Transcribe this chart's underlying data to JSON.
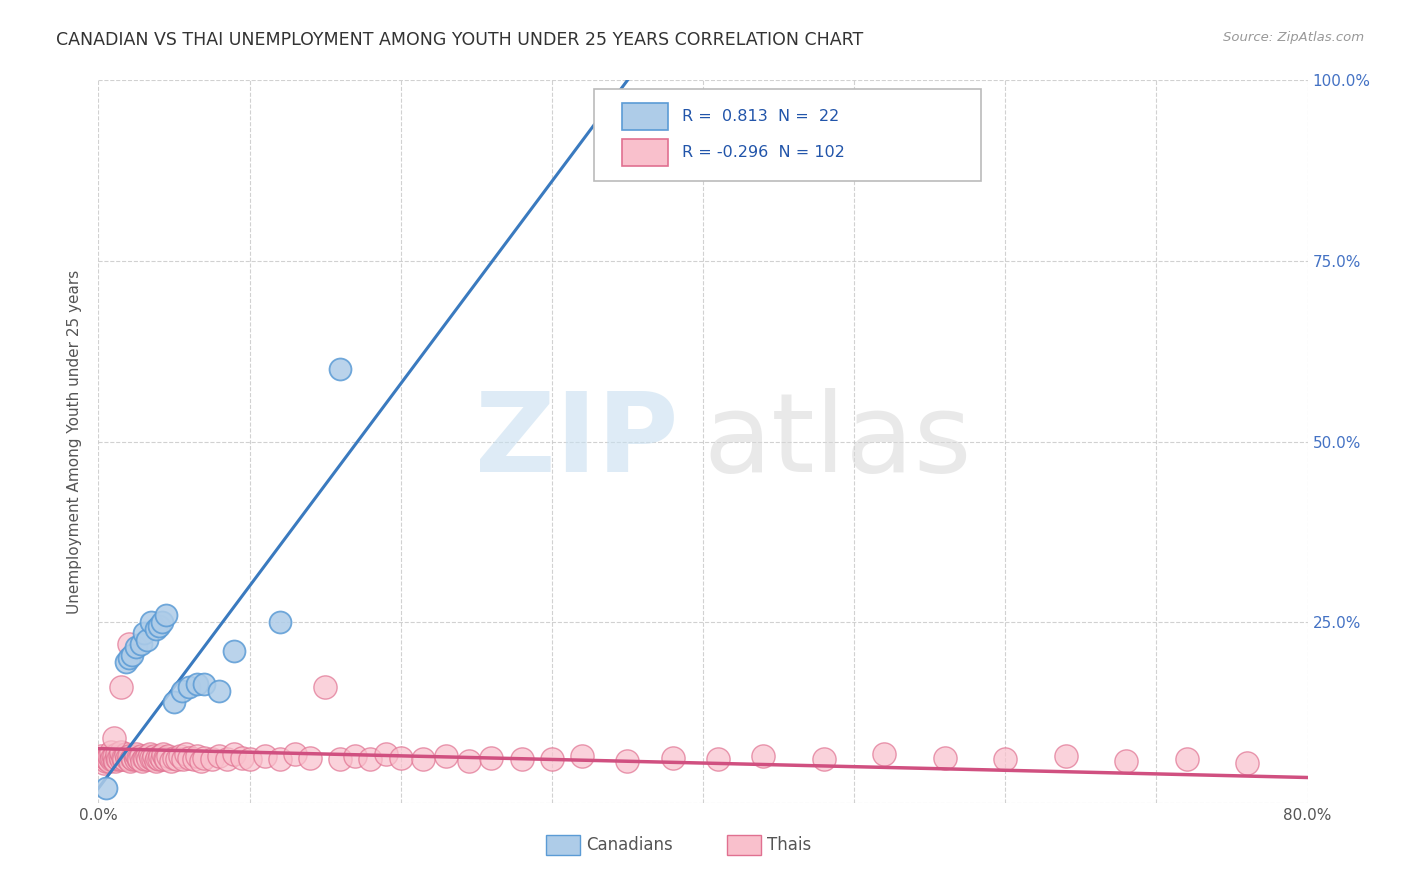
{
  "title": "CANADIAN VS THAI UNEMPLOYMENT AMONG YOUTH UNDER 25 YEARS CORRELATION CHART",
  "source": "Source: ZipAtlas.com",
  "ylabel": "Unemployment Among Youth under 25 years",
  "xlim": [
    0.0,
    0.8
  ],
  "ylim": [
    0.0,
    1.0
  ],
  "xticks": [
    0.0,
    0.1,
    0.2,
    0.3,
    0.4,
    0.5,
    0.6,
    0.7,
    0.8
  ],
  "xticklabels": [
    "0.0%",
    "",
    "",
    "",
    "",
    "",
    "",
    "",
    "80.0%"
  ],
  "yticks": [
    0.0,
    0.25,
    0.5,
    0.75,
    1.0
  ],
  "right_yticklabels": [
    "",
    "25.0%",
    "50.0%",
    "75.0%",
    "100.0%"
  ],
  "canadian_color_fill": "#aecce8",
  "canadian_color_edge": "#5b9bd5",
  "thai_color_fill": "#f9c0cc",
  "thai_color_edge": "#e07090",
  "canadian_line_color": "#3a7abf",
  "thai_line_color": "#d05080",
  "R_canadian": 0.813,
  "N_canadian": 22,
  "R_thai": -0.296,
  "N_thai": 102,
  "canadian_x": [
    0.005,
    0.018,
    0.02,
    0.022,
    0.025,
    0.028,
    0.03,
    0.032,
    0.035,
    0.038,
    0.04,
    0.042,
    0.045,
    0.05,
    0.055,
    0.06,
    0.065,
    0.07,
    0.08,
    0.09,
    0.12,
    0.16
  ],
  "canadian_y": [
    0.02,
    0.195,
    0.2,
    0.205,
    0.215,
    0.22,
    0.235,
    0.225,
    0.25,
    0.24,
    0.245,
    0.25,
    0.26,
    0.14,
    0.155,
    0.16,
    0.165,
    0.165,
    0.155,
    0.21,
    0.25,
    0.6
  ],
  "thai_x": [
    0.002,
    0.003,
    0.004,
    0.005,
    0.005,
    0.006,
    0.007,
    0.007,
    0.008,
    0.008,
    0.009,
    0.01,
    0.01,
    0.011,
    0.012,
    0.012,
    0.013,
    0.014,
    0.015,
    0.015,
    0.016,
    0.017,
    0.018,
    0.019,
    0.02,
    0.02,
    0.021,
    0.022,
    0.023,
    0.024,
    0.025,
    0.025,
    0.026,
    0.027,
    0.028,
    0.029,
    0.03,
    0.031,
    0.032,
    0.033,
    0.034,
    0.035,
    0.036,
    0.037,
    0.038,
    0.039,
    0.04,
    0.041,
    0.042,
    0.043,
    0.044,
    0.045,
    0.046,
    0.048,
    0.05,
    0.052,
    0.054,
    0.056,
    0.058,
    0.06,
    0.063,
    0.065,
    0.068,
    0.07,
    0.075,
    0.08,
    0.085,
    0.09,
    0.095,
    0.1,
    0.11,
    0.12,
    0.13,
    0.14,
    0.15,
    0.16,
    0.17,
    0.18,
    0.19,
    0.2,
    0.215,
    0.23,
    0.245,
    0.26,
    0.28,
    0.3,
    0.32,
    0.35,
    0.38,
    0.41,
    0.44,
    0.48,
    0.52,
    0.56,
    0.6,
    0.64,
    0.68,
    0.72,
    0.76,
    0.01,
    0.015,
    0.02
  ],
  "thai_y": [
    0.065,
    0.06,
    0.055,
    0.058,
    0.062,
    0.06,
    0.058,
    0.065,
    0.06,
    0.07,
    0.062,
    0.06,
    0.065,
    0.058,
    0.062,
    0.068,
    0.06,
    0.065,
    0.06,
    0.07,
    0.062,
    0.06,
    0.068,
    0.062,
    0.06,
    0.065,
    0.058,
    0.062,
    0.06,
    0.065,
    0.06,
    0.068,
    0.062,
    0.06,
    0.065,
    0.058,
    0.062,
    0.06,
    0.065,
    0.06,
    0.068,
    0.062,
    0.06,
    0.065,
    0.058,
    0.062,
    0.06,
    0.065,
    0.06,
    0.068,
    0.062,
    0.06,
    0.065,
    0.058,
    0.062,
    0.06,
    0.065,
    0.06,
    0.068,
    0.062,
    0.06,
    0.065,
    0.058,
    0.062,
    0.06,
    0.065,
    0.06,
    0.068,
    0.062,
    0.06,
    0.065,
    0.06,
    0.068,
    0.062,
    0.16,
    0.06,
    0.065,
    0.06,
    0.068,
    0.062,
    0.06,
    0.065,
    0.058,
    0.062,
    0.06,
    0.06,
    0.065,
    0.058,
    0.062,
    0.06,
    0.065,
    0.06,
    0.068,
    0.062,
    0.06,
    0.065,
    0.058,
    0.06,
    0.055,
    0.09,
    0.16,
    0.22
  ]
}
